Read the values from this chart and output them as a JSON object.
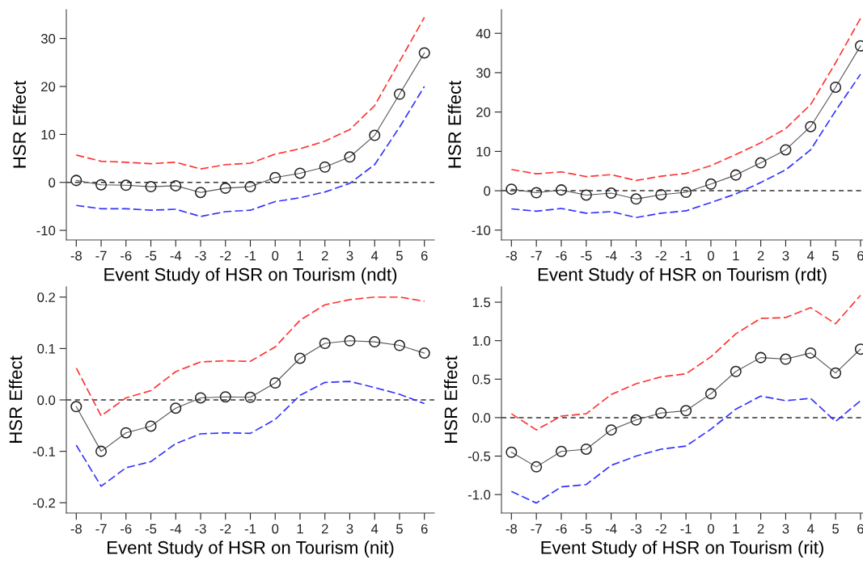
{
  "chart_data": [
    {
      "type": "line",
      "xlabel": "Event Study of HSR on Tourism (ndt)",
      "ylabel": "HSR Effect",
      "x": [
        -8,
        -7,
        -6,
        -5,
        -4,
        -3,
        -2,
        -1,
        0,
        1,
        2,
        3,
        4,
        5,
        6
      ],
      "xlim": [
        -8.4,
        6.4
      ],
      "xticks": [
        -8,
        -7,
        -6,
        -5,
        -4,
        -3,
        -2,
        -1,
        0,
        1,
        2,
        3,
        4,
        5,
        6
      ],
      "ylim": [
        -12,
        36
      ],
      "yticks": [
        -10,
        0,
        10,
        20,
        30
      ],
      "grid": false,
      "series": [
        {
          "color": "#ff3333",
          "line_style": "dashed",
          "marker": "none",
          "values": [
            5.7,
            4.4,
            4.2,
            3.9,
            4.2,
            2.8,
            3.7,
            4.0,
            5.9,
            7.0,
            8.6,
            11.0,
            16.0,
            25.2,
            34.4
          ]
        },
        {
          "color": "#555555",
          "line_style": "solid",
          "marker": "circle",
          "values": [
            0.4,
            -0.5,
            -0.6,
            -0.9,
            -0.7,
            -2.1,
            -1.2,
            -0.9,
            1.0,
            1.9,
            3.2,
            5.3,
            9.8,
            18.4,
            27.0
          ]
        },
        {
          "color": "#3333ff",
          "line_style": "dashed",
          "marker": "none",
          "values": [
            -4.8,
            -5.5,
            -5.5,
            -5.8,
            -5.6,
            -7.1,
            -6.1,
            -5.8,
            -4.0,
            -3.2,
            -2.0,
            -0.2,
            3.7,
            11.5,
            20.0
          ]
        }
      ],
      "ref_lines": [
        {
          "axis": "y",
          "value": 0,
          "color": "#333333",
          "line_style": "dashed"
        }
      ]
    },
    {
      "type": "line",
      "xlabel": "Event Study of HSR on Tourism (rdt)",
      "ylabel": "HSR Effect",
      "x": [
        -8,
        -7,
        -6,
        -5,
        -4,
        -3,
        -2,
        -1,
        0,
        1,
        2,
        3,
        4,
        5,
        6
      ],
      "xlim": [
        -8.4,
        6.1
      ],
      "xticks": [
        -8,
        -7,
        -6,
        -5,
        -4,
        -3,
        -2,
        -1,
        0,
        1,
        2,
        3,
        4,
        5,
        6
      ],
      "ylim": [
        -12.5,
        46
      ],
      "yticks": [
        -10,
        0,
        10,
        20,
        30,
        40
      ],
      "grid": false,
      "series": [
        {
          "color": "#ff3333",
          "line_style": "dashed",
          "marker": "none",
          "values": [
            5.4,
            4.3,
            4.8,
            3.6,
            4.1,
            2.6,
            3.7,
            4.4,
            6.4,
            9.2,
            12.2,
            15.8,
            21.9,
            32.5,
            43.8
          ]
        },
        {
          "color": "#555555",
          "line_style": "solid",
          "marker": "circle",
          "values": [
            0.4,
            -0.5,
            0.2,
            -1.1,
            -0.6,
            -2.1,
            -1.0,
            -0.4,
            1.7,
            4.0,
            7.1,
            10.4,
            16.3,
            26.3,
            36.8
          ]
        },
        {
          "color": "#3333ff",
          "line_style": "dashed",
          "marker": "none",
          "values": [
            -4.6,
            -5.2,
            -4.5,
            -5.7,
            -5.3,
            -6.8,
            -5.7,
            -5.1,
            -3.0,
            -0.8,
            2.1,
            5.3,
            10.4,
            20.3,
            29.6
          ]
        }
      ],
      "ref_lines": [
        {
          "axis": "y",
          "value": 0,
          "color": "#333333",
          "line_style": "dashed"
        }
      ]
    },
    {
      "type": "line",
      "xlabel": "Event Study of HSR on Tourism (nit)",
      "ylabel": "HSR Effect",
      "x": [
        -8,
        -7,
        -6,
        -5,
        -4,
        -3,
        -2,
        -1,
        0,
        1,
        2,
        3,
        4,
        5,
        6
      ],
      "xlim": [
        -8.4,
        6.4
      ],
      "xticks": [
        -8,
        -7,
        -6,
        -5,
        -4,
        -3,
        -2,
        -1,
        0,
        1,
        2,
        3,
        4,
        5,
        6
      ],
      "ylim": [
        -0.22,
        0.22
      ],
      "yticks": [
        -0.2,
        -0.1,
        {
          "value": 0,
          "label": "0.0"
        },
        0.1,
        0.2
      ],
      "grid": false,
      "series": [
        {
          "color": "#ff3333",
          "line_style": "dashed",
          "marker": "none",
          "values": [
            0.062,
            -0.031,
            0.004,
            0.018,
            0.055,
            0.074,
            0.076,
            0.075,
            0.103,
            0.155,
            0.185,
            0.195,
            0.2,
            0.2,
            0.192
          ]
        },
        {
          "color": "#555555",
          "line_style": "solid",
          "marker": "circle",
          "values": [
            -0.013,
            -0.1,
            -0.064,
            -0.051,
            -0.016,
            0.004,
            0.006,
            0.005,
            0.033,
            0.081,
            0.11,
            0.115,
            0.113,
            0.106,
            0.091
          ]
        },
        {
          "color": "#3333ff",
          "line_style": "dashed",
          "marker": "none",
          "values": [
            -0.088,
            -0.168,
            -0.132,
            -0.12,
            -0.085,
            -0.066,
            -0.064,
            -0.065,
            -0.038,
            0.009,
            0.034,
            0.036,
            0.024,
            0.011,
            -0.007
          ]
        }
      ],
      "ref_lines": [
        {
          "axis": "y",
          "value": 0,
          "color": "#333333",
          "line_style": "dashed"
        }
      ]
    },
    {
      "type": "line",
      "xlabel": "Event Study of HSR on Tourism (rit)",
      "ylabel": "HSR Effect",
      "x": [
        -8,
        -7,
        -6,
        -5,
        -4,
        -3,
        -2,
        -1,
        0,
        1,
        2,
        3,
        4,
        5,
        6
      ],
      "xlim": [
        -8.4,
        6.1
      ],
      "xticks": [
        -8,
        -7,
        -6,
        -5,
        -4,
        -3,
        -2,
        -1,
        0,
        1,
        2,
        3,
        4,
        5,
        6
      ],
      "ylim": [
        -1.24,
        1.7
      ],
      "yticks": [
        {
          "value": -1,
          "label": "-1.0"
        },
        -0.5,
        {
          "value": 0,
          "label": "0.0"
        },
        0.5,
        {
          "value": 1,
          "label": "1.0"
        },
        1.5
      ],
      "grid": false,
      "series": [
        {
          "color": "#ff3333",
          "line_style": "dashed",
          "marker": "none",
          "values": [
            0.05,
            -0.16,
            0.02,
            0.05,
            0.3,
            0.44,
            0.53,
            0.57,
            0.79,
            1.09,
            1.29,
            1.3,
            1.43,
            1.22,
            1.59
          ]
        },
        {
          "color": "#555555",
          "line_style": "solid",
          "marker": "circle",
          "values": [
            -0.45,
            -0.64,
            -0.44,
            -0.41,
            -0.16,
            -0.03,
            0.06,
            0.09,
            0.31,
            0.6,
            0.78,
            0.76,
            0.84,
            0.58,
            0.89
          ]
        },
        {
          "color": "#3333ff",
          "line_style": "dashed",
          "marker": "none",
          "values": [
            -0.96,
            -1.11,
            -0.9,
            -0.87,
            -0.62,
            -0.5,
            -0.41,
            -0.37,
            -0.15,
            0.11,
            0.28,
            0.22,
            0.25,
            -0.05,
            0.22
          ]
        }
      ],
      "ref_lines": [
        {
          "axis": "y",
          "value": 0,
          "color": "#333333",
          "line_style": "dashed"
        }
      ]
    }
  ]
}
